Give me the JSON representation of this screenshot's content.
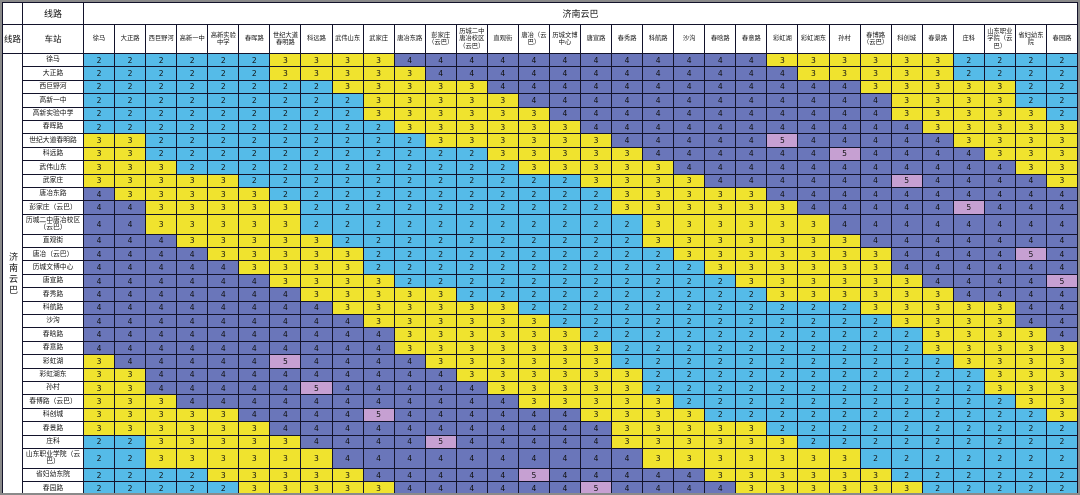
{
  "header": {
    "line_row_label": "线路",
    "line_col_label": "线路",
    "station_label": "车站",
    "line_name": "济南云巴",
    "left_line_name": "济南云巴"
  },
  "fare_colors": {
    "2": "#55bbe8",
    "3": "#f0e32e",
    "4": "#6a76ba",
    "5": "#c6a0d2"
  },
  "chart_data": {
    "type": "heatmap",
    "line": "济南云巴",
    "x_label": "济南云巴",
    "y_label": "济南云巴",
    "stations": [
      "徐马",
      "大正路",
      "西巨野河",
      "高新一中",
      "高新实验中学",
      "春晖路",
      "世纪大道春明路",
      "科远路",
      "武伟山东",
      "武家庄",
      "唐冶东路",
      "彭家庄（云巴）",
      "历城二中唐冶校区（云巴）",
      "直观街",
      "唐冶（云巴）",
      "历城文博中心",
      "唐宣路",
      "春秀路",
      "科航路",
      "沙沟",
      "春晗路",
      "春意路",
      "彩虹湖",
      "彩虹湖东",
      "孙村",
      "春博路（云巴）",
      "科创城",
      "春景路",
      "庄科",
      "山东职业学院（云巴）",
      "省妇幼东院",
      "春园路"
    ],
    "matrix": [
      [
        2,
        2,
        2,
        2,
        2,
        2,
        3,
        3,
        3,
        3,
        4,
        4,
        4,
        4,
        4,
        4,
        4,
        4,
        4,
        4,
        4,
        4,
        3,
        3,
        3,
        3,
        3,
        3,
        2,
        2,
        2,
        2
      ],
      [
        2,
        2,
        2,
        2,
        2,
        2,
        3,
        3,
        3,
        3,
        3,
        4,
        4,
        4,
        4,
        4,
        4,
        4,
        4,
        4,
        4,
        4,
        4,
        3,
        3,
        3,
        3,
        3,
        2,
        2,
        2,
        2
      ],
      [
        2,
        2,
        2,
        2,
        2,
        2,
        2,
        2,
        3,
        3,
        3,
        3,
        3,
        4,
        4,
        4,
        4,
        4,
        4,
        4,
        4,
        4,
        4,
        4,
        4,
        3,
        3,
        3,
        3,
        3,
        2,
        2
      ],
      [
        2,
        2,
        2,
        2,
        2,
        2,
        2,
        2,
        2,
        3,
        3,
        3,
        3,
        3,
        4,
        4,
        4,
        4,
        4,
        4,
        4,
        4,
        4,
        4,
        4,
        4,
        3,
        3,
        3,
        3,
        2,
        2
      ],
      [
        2,
        2,
        2,
        2,
        2,
        2,
        2,
        2,
        2,
        3,
        3,
        3,
        3,
        3,
        3,
        4,
        4,
        4,
        4,
        4,
        4,
        4,
        4,
        4,
        4,
        4,
        3,
        3,
        3,
        3,
        3,
        2
      ],
      [
        2,
        2,
        2,
        2,
        2,
        2,
        2,
        2,
        2,
        2,
        3,
        3,
        3,
        3,
        3,
        3,
        4,
        4,
        4,
        4,
        4,
        4,
        4,
        4,
        4,
        4,
        4,
        3,
        3,
        3,
        3,
        3
      ],
      [
        3,
        3,
        2,
        2,
        2,
        2,
        2,
        2,
        2,
        2,
        2,
        3,
        3,
        3,
        3,
        3,
        3,
        4,
        4,
        4,
        4,
        4,
        5,
        4,
        4,
        4,
        4,
        4,
        3,
        3,
        3,
        3
      ],
      [
        3,
        3,
        2,
        2,
        2,
        2,
        2,
        2,
        2,
        2,
        2,
        2,
        2,
        3,
        3,
        3,
        3,
        3,
        4,
        4,
        4,
        4,
        4,
        4,
        5,
        4,
        4,
        4,
        4,
        3,
        3,
        3
      ],
      [
        3,
        3,
        3,
        2,
        2,
        2,
        2,
        2,
        2,
        2,
        2,
        2,
        2,
        2,
        3,
        3,
        3,
        3,
        3,
        4,
        4,
        4,
        4,
        4,
        4,
        4,
        4,
        4,
        4,
        4,
        3,
        3
      ],
      [
        3,
        3,
        3,
        3,
        3,
        2,
        2,
        2,
        2,
        2,
        2,
        2,
        2,
        2,
        2,
        2,
        3,
        3,
        3,
        3,
        4,
        4,
        4,
        4,
        4,
        4,
        5,
        4,
        4,
        4,
        4,
        3
      ],
      [
        4,
        3,
        3,
        3,
        3,
        3,
        2,
        2,
        2,
        2,
        2,
        2,
        2,
        2,
        2,
        2,
        2,
        3,
        3,
        3,
        3,
        3,
        4,
        4,
        4,
        4,
        4,
        4,
        4,
        4,
        4,
        4
      ],
      [
        4,
        4,
        3,
        3,
        3,
        3,
        3,
        2,
        2,
        2,
        2,
        2,
        2,
        2,
        2,
        2,
        2,
        3,
        3,
        3,
        3,
        3,
        3,
        4,
        4,
        4,
        4,
        4,
        5,
        4,
        4,
        4
      ],
      [
        4,
        4,
        3,
        3,
        3,
        3,
        3,
        2,
        2,
        2,
        2,
        2,
        2,
        2,
        2,
        2,
        2,
        2,
        3,
        3,
        3,
        3,
        3,
        3,
        4,
        4,
        4,
        4,
        4,
        4,
        4,
        4
      ],
      [
        4,
        4,
        4,
        3,
        3,
        3,
        3,
        3,
        2,
        2,
        2,
        2,
        2,
        2,
        2,
        2,
        2,
        2,
        3,
        3,
        3,
        3,
        3,
        3,
        3,
        4,
        4,
        4,
        4,
        4,
        4,
        4
      ],
      [
        4,
        4,
        4,
        4,
        3,
        3,
        3,
        3,
        3,
        2,
        2,
        2,
        2,
        2,
        2,
        2,
        2,
        2,
        2,
        3,
        3,
        3,
        3,
        3,
        3,
        3,
        4,
        4,
        4,
        4,
        5,
        4
      ],
      [
        4,
        4,
        4,
        4,
        4,
        3,
        3,
        3,
        3,
        2,
        2,
        2,
        2,
        2,
        2,
        2,
        2,
        2,
        2,
        2,
        3,
        3,
        3,
        3,
        3,
        3,
        4,
        4,
        4,
        4,
        4,
        4
      ],
      [
        4,
        4,
        4,
        4,
        4,
        4,
        3,
        3,
        3,
        3,
        2,
        2,
        2,
        2,
        2,
        2,
        2,
        2,
        2,
        2,
        2,
        3,
        3,
        3,
        3,
        3,
        3,
        4,
        4,
        4,
        4,
        5
      ],
      [
        4,
        4,
        4,
        4,
        4,
        4,
        4,
        3,
        3,
        3,
        3,
        3,
        2,
        2,
        2,
        2,
        2,
        2,
        2,
        2,
        2,
        2,
        3,
        3,
        3,
        3,
        3,
        3,
        4,
        4,
        4,
        4
      ],
      [
        4,
        4,
        4,
        4,
        4,
        4,
        4,
        4,
        3,
        3,
        3,
        3,
        3,
        3,
        2,
        2,
        2,
        2,
        2,
        2,
        2,
        2,
        2,
        2,
        2,
        3,
        3,
        3,
        3,
        3,
        4,
        4
      ],
      [
        4,
        4,
        4,
        4,
        4,
        4,
        4,
        4,
        4,
        3,
        3,
        3,
        3,
        3,
        3,
        2,
        2,
        2,
        2,
        2,
        2,
        2,
        2,
        2,
        2,
        2,
        3,
        3,
        3,
        3,
        4,
        4
      ],
      [
        4,
        4,
        4,
        4,
        4,
        4,
        4,
        4,
        4,
        4,
        3,
        3,
        3,
        3,
        3,
        3,
        2,
        2,
        2,
        2,
        2,
        2,
        2,
        2,
        2,
        2,
        2,
        3,
        3,
        3,
        3,
        4
      ],
      [
        4,
        4,
        4,
        4,
        4,
        4,
        4,
        4,
        4,
        4,
        3,
        3,
        3,
        3,
        3,
        3,
        3,
        2,
        2,
        2,
        2,
        2,
        2,
        2,
        2,
        2,
        2,
        3,
        3,
        3,
        3,
        3
      ],
      [
        3,
        4,
        4,
        4,
        4,
        4,
        5,
        4,
        4,
        4,
        4,
        3,
        3,
        3,
        3,
        3,
        3,
        2,
        2,
        2,
        2,
        2,
        2,
        2,
        2,
        2,
        2,
        2,
        3,
        3,
        3,
        3
      ],
      [
        3,
        3,
        4,
        4,
        4,
        4,
        4,
        4,
        4,
        4,
        4,
        4,
        3,
        3,
        3,
        3,
        3,
        3,
        2,
        2,
        2,
        2,
        2,
        2,
        2,
        2,
        2,
        2,
        2,
        3,
        3,
        3
      ],
      [
        3,
        3,
        4,
        4,
        4,
        4,
        4,
        5,
        4,
        4,
        4,
        4,
        4,
        3,
        3,
        3,
        3,
        3,
        2,
        2,
        2,
        2,
        2,
        2,
        2,
        2,
        2,
        2,
        2,
        3,
        3,
        3
      ],
      [
        3,
        3,
        3,
        4,
        4,
        4,
        4,
        4,
        4,
        4,
        4,
        4,
        4,
        4,
        3,
        3,
        3,
        3,
        3,
        2,
        2,
        2,
        2,
        2,
        2,
        2,
        2,
        2,
        2,
        2,
        3,
        3
      ],
      [
        3,
        3,
        3,
        3,
        3,
        4,
        4,
        4,
        4,
        5,
        4,
        4,
        4,
        4,
        4,
        4,
        3,
        3,
        3,
        3,
        2,
        2,
        2,
        2,
        2,
        2,
        2,
        2,
        2,
        2,
        2,
        3
      ],
      [
        3,
        3,
        3,
        3,
        3,
        3,
        4,
        4,
        4,
        4,
        4,
        4,
        4,
        4,
        4,
        4,
        4,
        3,
        3,
        3,
        3,
        3,
        2,
        2,
        2,
        2,
        2,
        2,
        2,
        2,
        2,
        2
      ],
      [
        2,
        2,
        3,
        3,
        3,
        3,
        3,
        4,
        4,
        4,
        4,
        5,
        4,
        4,
        4,
        4,
        4,
        3,
        3,
        3,
        3,
        3,
        3,
        2,
        2,
        2,
        2,
        2,
        2,
        2,
        2,
        2
      ],
      [
        2,
        2,
        3,
        3,
        3,
        3,
        3,
        3,
        4,
        4,
        4,
        4,
        4,
        4,
        4,
        4,
        4,
        4,
        3,
        3,
        3,
        3,
        3,
        3,
        3,
        2,
        2,
        2,
        2,
        2,
        2,
        2
      ],
      [
        2,
        2,
        2,
        2,
        3,
        3,
        3,
        3,
        3,
        4,
        4,
        4,
        4,
        4,
        5,
        4,
        4,
        4,
        4,
        4,
        3,
        3,
        3,
        3,
        3,
        3,
        2,
        2,
        2,
        2,
        2,
        2
      ],
      [
        2,
        2,
        2,
        2,
        2,
        3,
        3,
        3,
        3,
        3,
        4,
        4,
        4,
        4,
        4,
        4,
        5,
        4,
        4,
        4,
        4,
        3,
        3,
        3,
        3,
        3,
        3,
        2,
        2,
        2,
        2,
        2
      ]
    ]
  }
}
